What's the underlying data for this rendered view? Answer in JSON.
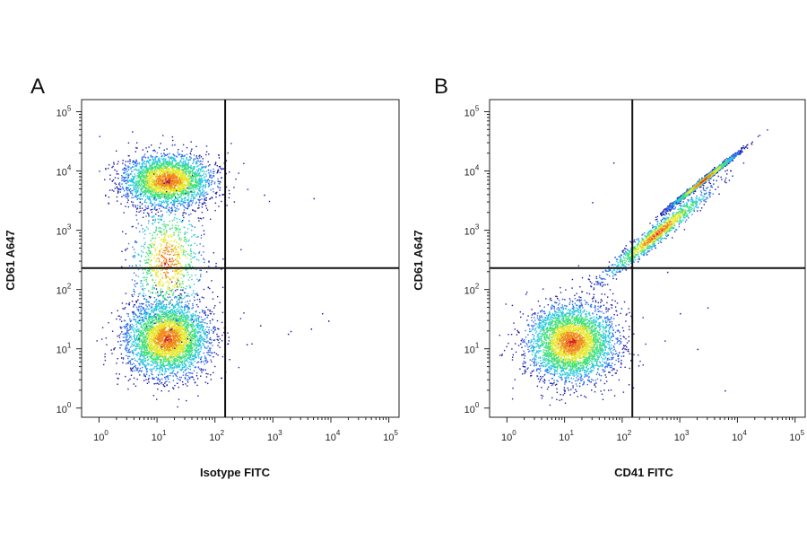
{
  "chart_data": [
    {
      "type": "scatter",
      "panel": "A",
      "xlabel": "Isotype FITC",
      "ylabel": "CD61 A647",
      "x_scale": "log",
      "y_scale": "log",
      "xlim": [
        0.5,
        150000
      ],
      "ylim": [
        0.7,
        160000
      ],
      "x_ticks": [
        1,
        10,
        100,
        1000,
        10000,
        100000
      ],
      "y_ticks": [
        1,
        10,
        100,
        1000,
        10000,
        100000
      ],
      "x_tick_labels": [
        {
          "base": "10",
          "exp": "0"
        },
        {
          "base": "10",
          "exp": "1"
        },
        {
          "base": "10",
          "exp": "2"
        },
        {
          "base": "10",
          "exp": "3"
        },
        {
          "base": "10",
          "exp": "4"
        },
        {
          "base": "10",
          "exp": "5"
        }
      ],
      "y_tick_labels": [
        {
          "base": "10",
          "exp": "0"
        },
        {
          "base": "10",
          "exp": "1"
        },
        {
          "base": "10",
          "exp": "2"
        },
        {
          "base": "10",
          "exp": "3"
        },
        {
          "base": "10",
          "exp": "4"
        },
        {
          "base": "10",
          "exp": "5"
        }
      ],
      "quadrant_gate": {
        "x": 150,
        "y": 230
      },
      "populations": [
        {
          "center_x": 15,
          "center_y": 7000,
          "spread_x_decades": 0.38,
          "spread_y_decades": 0.22,
          "count": 3000
        },
        {
          "center_x": 15,
          "center_y": 15,
          "spread_x_decades": 0.36,
          "spread_y_decades": 0.32,
          "count": 3800
        },
        {
          "center_x": 15,
          "center_y": 300,
          "spread_x_decades": 0.3,
          "spread_y_decades": 0.5,
          "count": 900
        }
      ],
      "sparse_events": [
        [
          350,
          12
        ],
        [
          600,
          25
        ],
        [
          2000,
          20
        ],
        [
          4500,
          22
        ],
        [
          7000,
          40
        ],
        [
          9000,
          30
        ],
        [
          700,
          4000
        ],
        [
          5000,
          3500
        ],
        [
          1800,
          18
        ]
      ],
      "colormap": [
        "#1a1aa8",
        "#2d6cf0",
        "#28c8e0",
        "#3ee07a",
        "#e8e830",
        "#f08a1e",
        "#d81e1e"
      ],
      "grid": false
    },
    {
      "type": "scatter",
      "panel": "B",
      "xlabel": "CD41 FITC",
      "ylabel": "CD61 A647",
      "x_scale": "log",
      "y_scale": "log",
      "xlim": [
        0.5,
        150000
      ],
      "ylim": [
        0.7,
        160000
      ],
      "x_ticks": [
        1,
        10,
        100,
        1000,
        10000,
        100000
      ],
      "y_ticks": [
        1,
        10,
        100,
        1000,
        10000,
        100000
      ],
      "x_tick_labels": [
        {
          "base": "10",
          "exp": "0"
        },
        {
          "base": "10",
          "exp": "1"
        },
        {
          "base": "10",
          "exp": "2"
        },
        {
          "base": "10",
          "exp": "3"
        },
        {
          "base": "10",
          "exp": "4"
        },
        {
          "base": "10",
          "exp": "5"
        }
      ],
      "y_tick_labels": [
        {
          "base": "10",
          "exp": "0"
        },
        {
          "base": "10",
          "exp": "1"
        },
        {
          "base": "10",
          "exp": "2"
        },
        {
          "base": "10",
          "exp": "3"
        },
        {
          "base": "10",
          "exp": "4"
        },
        {
          "base": "10",
          "exp": "5"
        }
      ],
      "quadrant_gate": {
        "x": 150,
        "y": 230
      },
      "populations": [
        {
          "center_x": 13,
          "center_y": 13,
          "spread_x_decades": 0.38,
          "spread_y_decades": 0.32,
          "count": 3800
        },
        {
          "center_x": 2500,
          "center_y": 7000,
          "spread_x_decades": 0.28,
          "spread_y_decades": 0.2,
          "count": 2400,
          "diagonal": true
        },
        {
          "center_x": 400,
          "center_y": 900,
          "spread_x_decades": 0.45,
          "spread_y_decades": 0.35,
          "count": 1200,
          "diagonal": true
        }
      ],
      "sparse_events": [
        [
          70,
          14000
        ],
        [
          1000,
          40
        ],
        [
          2000,
          10
        ],
        [
          3000,
          50
        ],
        [
          6000,
          2
        ],
        [
          30,
          3000
        ],
        [
          600,
          200
        ]
      ],
      "colormap": [
        "#1a1aa8",
        "#2d6cf0",
        "#28c8e0",
        "#3ee07a",
        "#e8e830",
        "#f08a1e",
        "#d81e1e"
      ],
      "grid": false
    }
  ]
}
